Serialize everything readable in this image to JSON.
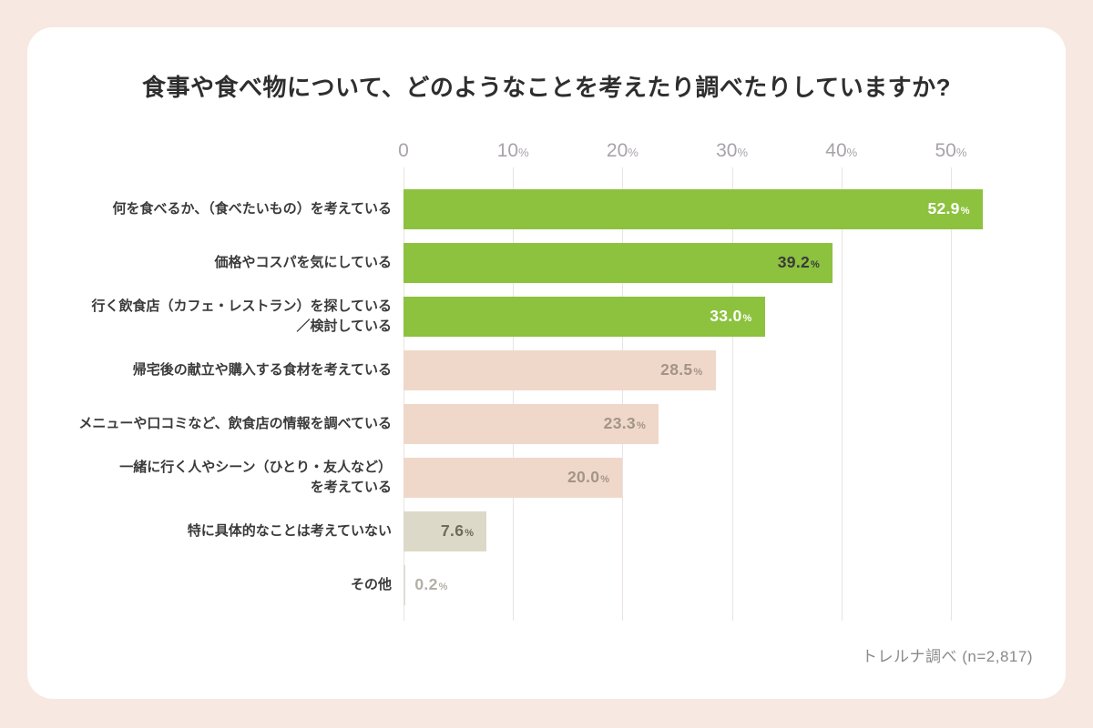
{
  "title": "食事や食べ物について、どのようなことを考えたり調べたりしていますか?",
  "source_note": "トレルナ調べ (n=2,817)",
  "colors": {
    "background": "#f8e8e2",
    "card": "#ffffff",
    "green_bar": "#8cc23e",
    "pink_bar": "#efd8c9",
    "beige_bar": "#dcd9c8",
    "light_bar": "#deded6",
    "gridline": "#e9e4e1",
    "axis_text": "#a8a2ab"
  },
  "chart_data": {
    "type": "bar",
    "orientation": "horizontal",
    "title": "食事や食べ物について、どのようなことを考えたり調べたりしていますか?",
    "xlabel": "",
    "ylabel": "",
    "unit": "%",
    "axis": {
      "ticks": [
        0,
        10,
        20,
        30,
        40,
        50
      ],
      "max": 53,
      "grid": true
    },
    "legend": "none",
    "categories": [
      "何を食べるか、（食べたいもの）を考えている",
      "価格やコスパを気にしている",
      "行く飲食店（カフェ・レストラン）を探している\n／検討している",
      "帰宅後の献立や購入する食材を考えている",
      "メニューや口コミなど、飲食店の情報を調べている",
      "一緒に行く人やシーン（ひとり・友人など）\nを考えている",
      "特に具体的なことは考えていない",
      "その他"
    ],
    "values": [
      52.9,
      39.2,
      33.0,
      28.5,
      23.3,
      20.0,
      7.6,
      0.2
    ],
    "bars": [
      {
        "label": "何を食べるか、（食べたいもの）を考えている",
        "value": 52.9,
        "color": "#8cc23e",
        "value_color": "#ffffff",
        "value_inside": true
      },
      {
        "label": "価格やコスパを気にしている",
        "value": 39.2,
        "color": "#8cc23e",
        "value_color": "#3a3a3a",
        "value_inside": true
      },
      {
        "label": "行く飲食店（カフェ・レストラン）を探している\n／検討している",
        "value": 33.0,
        "color": "#8cc23e",
        "value_color": "#ffffff",
        "value_inside": true
      },
      {
        "label": "帰宅後の献立や購入する食材を考えている",
        "value": 28.5,
        "color": "#efd8c9",
        "value_color": "#a3948a",
        "value_inside": true
      },
      {
        "label": "メニューや口コミなど、飲食店の情報を調べている",
        "value": 23.3,
        "color": "#efd8c9",
        "value_color": "#a3948a",
        "value_inside": true
      },
      {
        "label": "一緒に行く人やシーン（ひとり・友人など）\nを考えている",
        "value": 20.0,
        "color": "#efd8c9",
        "value_color": "#a3948a",
        "value_inside": true
      },
      {
        "label": "特に具体的なことは考えていない",
        "value": 7.6,
        "color": "#dcd9c8",
        "value_color": "#6b6b5e",
        "value_inside": true
      },
      {
        "label": "その他",
        "value": 0.2,
        "color": "#deded6",
        "value_color": "#b4afa6",
        "value_inside": false
      }
    ]
  }
}
